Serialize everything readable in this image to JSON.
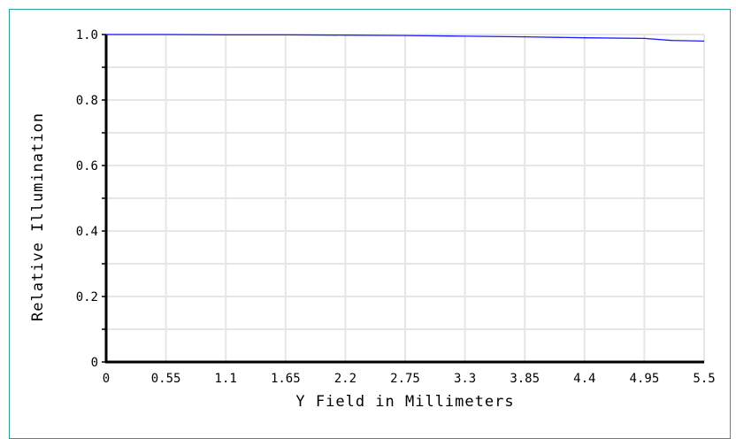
{
  "chart_data": {
    "type": "line",
    "xlabel": "Y Field in Millimeters",
    "ylabel": "Relative Illumination",
    "xlim": [
      0,
      5.5
    ],
    "ylim": [
      0,
      1.0
    ],
    "x_ticks": [
      "0",
      "0.55",
      "1.1",
      "1.65",
      "2.2",
      "2.75",
      "3.3",
      "3.85",
      "4.4",
      "4.95",
      "5.5"
    ],
    "y_ticks": [
      "0",
      "0.2",
      "0.4",
      "0.6",
      "0.8",
      "1.0"
    ],
    "grid": true,
    "colors": {
      "line": "#1a1aff",
      "grid": "#e6e6e6",
      "frame": "#2a9d8f"
    },
    "series": [
      {
        "x": [
          0,
          0.55,
          1.1,
          1.65,
          2.2,
          2.75,
          3.3,
          3.85,
          4.4,
          4.95,
          5.2,
          5.5
        ],
        "y": [
          1.0,
          1.0,
          0.999,
          0.999,
          0.998,
          0.997,
          0.995,
          0.993,
          0.99,
          0.988,
          0.982,
          0.98
        ]
      }
    ]
  }
}
